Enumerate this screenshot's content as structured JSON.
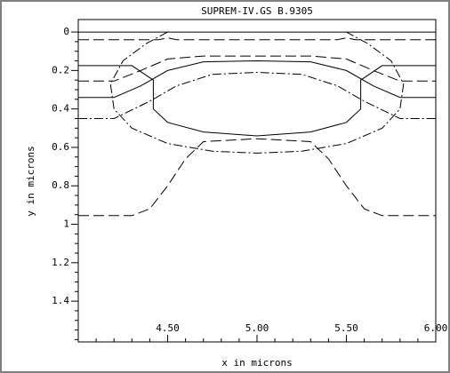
{
  "chart_data": {
    "type": "line",
    "title": "SUPREM-IV.GS B.9305",
    "xlabel": "x in microns",
    "ylabel": "y in microns",
    "xlim": [
      4.0,
      6.0
    ],
    "ylim": [
      -0.065,
      1.612
    ],
    "y_inverted": true,
    "xticks": [
      {
        "value": 4.5,
        "label": "4.50"
      },
      {
        "value": 5.0,
        "label": "5.00"
      },
      {
        "value": 5.5,
        "label": "5.50"
      },
      {
        "value": 6.0,
        "label": "6.00"
      }
    ],
    "yticks": [
      0,
      0.2,
      0.4,
      0.6,
      0.8,
      1,
      1.2,
      1.4
    ],
    "xminorticks": [
      4.1,
      4.2,
      4.3,
      4.4,
      4.6,
      4.7,
      4.8,
      4.9,
      5.1,
      5.2,
      5.3,
      5.4,
      5.6,
      5.7,
      5.8,
      5.9
    ],
    "yminorticks": [
      0.05,
      0.1,
      0.15,
      0.25,
      0.3,
      0.35,
      0.45,
      0.5,
      0.55,
      0.65,
      0.7,
      0.75,
      0.85,
      0.9,
      0.95,
      1.05,
      1.1,
      1.15,
      1.25,
      1.3,
      1.35,
      1.45,
      1.5,
      1.55,
      1.6
    ],
    "series": [
      {
        "color": "#000000",
        "dash": "solid",
        "x": [
          4.0,
          6.0
        ],
        "y": [
          0,
          0
        ]
      },
      {
        "color": "#000000",
        "dash": "longdash",
        "x": [
          4.0,
          4.45,
          4.5,
          4.55,
          5.45,
          5.5,
          5.55,
          6.0
        ],
        "y": [
          0.04,
          0.04,
          0.03,
          0.04,
          0.04,
          0.03,
          0.04,
          0.04
        ]
      },
      {
        "color": "#000000",
        "dash": "dashdot",
        "x": [
          4.5,
          4.38,
          4.25,
          4.18,
          4.2,
          4.3,
          4.5,
          4.75,
          5.0,
          5.25,
          5.5,
          5.7,
          5.8,
          5.82,
          5.75,
          5.62,
          5.5
        ],
        "y": [
          0.0,
          0.06,
          0.15,
          0.27,
          0.4,
          0.5,
          0.58,
          0.62,
          0.63,
          0.62,
          0.58,
          0.5,
          0.4,
          0.27,
          0.15,
          0.06,
          0.0
        ]
      },
      {
        "color": "#000000",
        "dash": "solid",
        "x": [
          4.0,
          4.3,
          4.42,
          4.42,
          4.5,
          4.7,
          5.0,
          5.3,
          5.5,
          5.58,
          5.58,
          5.7,
          6.0
        ],
        "y": [
          0.175,
          0.175,
          0.25,
          0.4,
          0.47,
          0.52,
          0.54,
          0.52,
          0.47,
          0.4,
          0.25,
          0.175,
          0.175
        ]
      },
      {
        "color": "#000000",
        "dash": "longdash",
        "x": [
          4.0,
          4.2,
          4.35,
          4.5,
          4.7,
          5.0,
          5.3,
          5.5,
          5.65,
          5.8,
          6.0
        ],
        "y": [
          0.255,
          0.255,
          0.2,
          0.14,
          0.125,
          0.125,
          0.125,
          0.14,
          0.2,
          0.255,
          0.255
        ]
      },
      {
        "color": "#000000",
        "dash": "solid",
        "x": [
          4.0,
          4.2,
          4.35,
          4.5,
          4.7,
          5.0,
          5.3,
          5.5,
          5.65,
          5.8,
          6.0
        ],
        "y": [
          0.34,
          0.34,
          0.28,
          0.2,
          0.155,
          0.15,
          0.155,
          0.2,
          0.28,
          0.34,
          0.34
        ]
      },
      {
        "color": "#000000",
        "dash": "dashdot",
        "x": [
          4.0,
          4.2,
          4.4,
          4.55,
          4.75,
          5.0,
          5.25,
          5.45,
          5.6,
          5.8,
          6.0
        ],
        "y": [
          0.45,
          0.45,
          0.36,
          0.28,
          0.22,
          0.21,
          0.22,
          0.28,
          0.36,
          0.45,
          0.45
        ]
      },
      {
        "color": "#000000",
        "dash": "longdash",
        "x": [
          4.0,
          4.3,
          4.4,
          4.5,
          4.6,
          4.7,
          5.0,
          5.3,
          5.4,
          5.5,
          5.6,
          5.7,
          6.0
        ],
        "y": [
          0.955,
          0.955,
          0.92,
          0.8,
          0.66,
          0.57,
          0.555,
          0.57,
          0.66,
          0.8,
          0.92,
          0.955,
          0.955
        ]
      }
    ]
  }
}
